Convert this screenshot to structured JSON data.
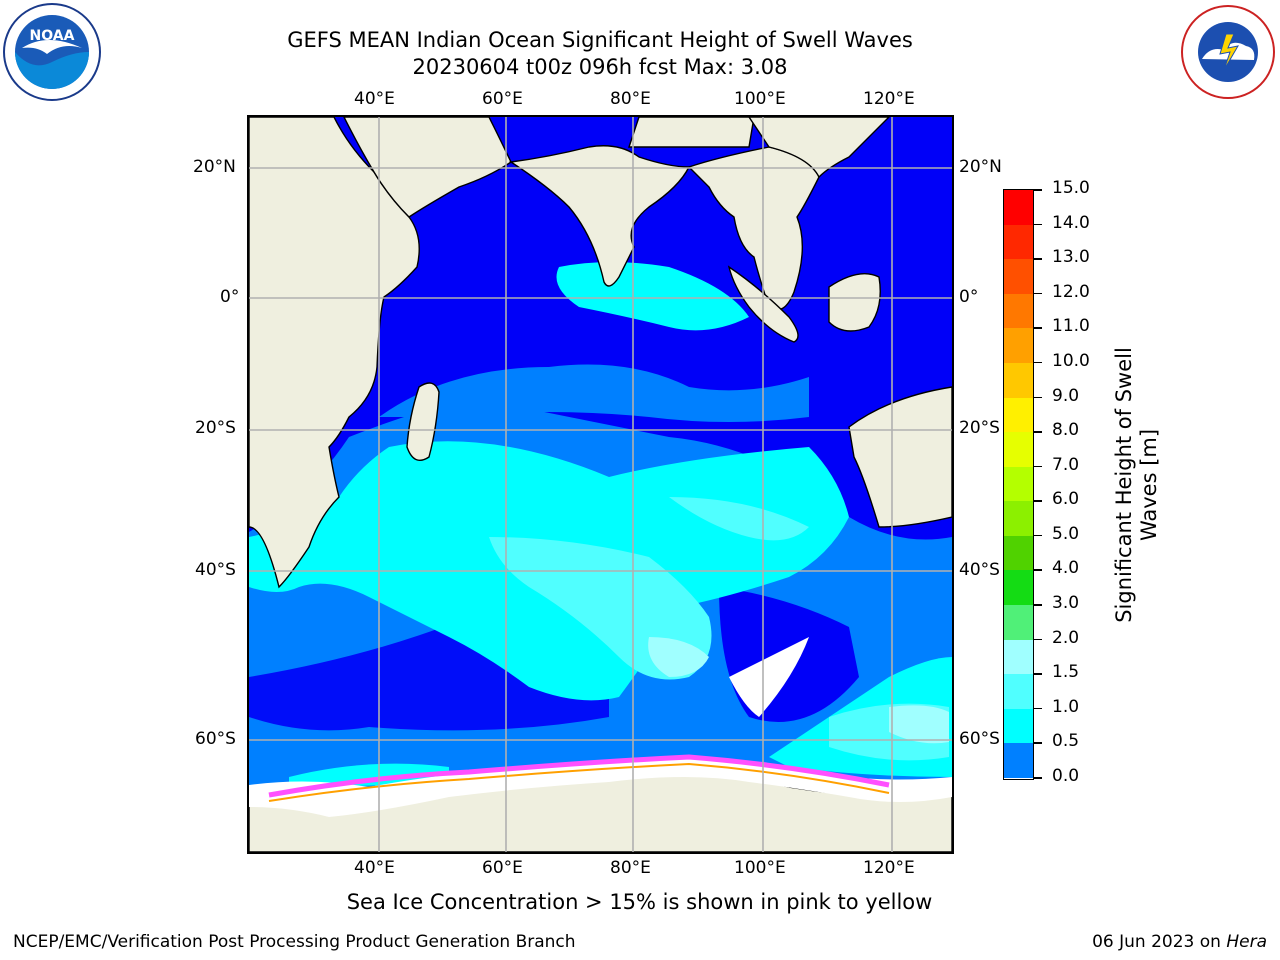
{
  "title": {
    "line1": "GEFS MEAN Indian Ocean Significant Height of Swell Waves",
    "line2": "20230604 t00z 096h fcst   Max: 3.08"
  },
  "map": {
    "lon_ticks": [
      "40°E",
      "60°E",
      "80°E",
      "100°E",
      "120°E"
    ],
    "lat_ticks": [
      "20°N",
      "0°",
      "20°S",
      "40°S",
      "60°S"
    ],
    "extent": {
      "lon": [
        20,
        129
      ],
      "lat": [
        -72,
        28
      ]
    },
    "colors": {
      "land": "#efefdf",
      "ice": "#ffffff",
      "grid": "#b0b0b0"
    }
  },
  "colorbar": {
    "title_line1": "Significant Height of Swell",
    "title_line2": "Waves [m]",
    "ticks": [
      "15.0",
      "14.0",
      "13.0",
      "12.0",
      "11.0",
      "10.0",
      "9.0",
      "8.0",
      "7.0",
      "6.0",
      "5.0",
      "4.0",
      "3.0",
      "2.0",
      "1.5",
      "1.0",
      "0.5",
      "0.0"
    ],
    "colors": [
      "#ff0000",
      "#ff2800",
      "#ff5000",
      "#ff7800",
      "#ffa000",
      "#ffc800",
      "#fff000",
      "#e6ff00",
      "#b4ff00",
      "#8cf000",
      "#50d200",
      "#14dc14",
      "#50f078",
      "#a0ffff",
      "#50ffff",
      "#00ffff",
      "#0080ff",
      "#0000ff"
    ]
  },
  "ice_note": "Sea Ice Concentration > 15% is shown in pink to yellow",
  "footer": {
    "left": "NCEP/EMC/Verification Post Processing Product Generation Branch",
    "right_date": "06 Jun 2023 on ",
    "right_host": "Hera"
  },
  "logos": {
    "left": "noaa-logo",
    "right": "national-weather-service-logo"
  }
}
